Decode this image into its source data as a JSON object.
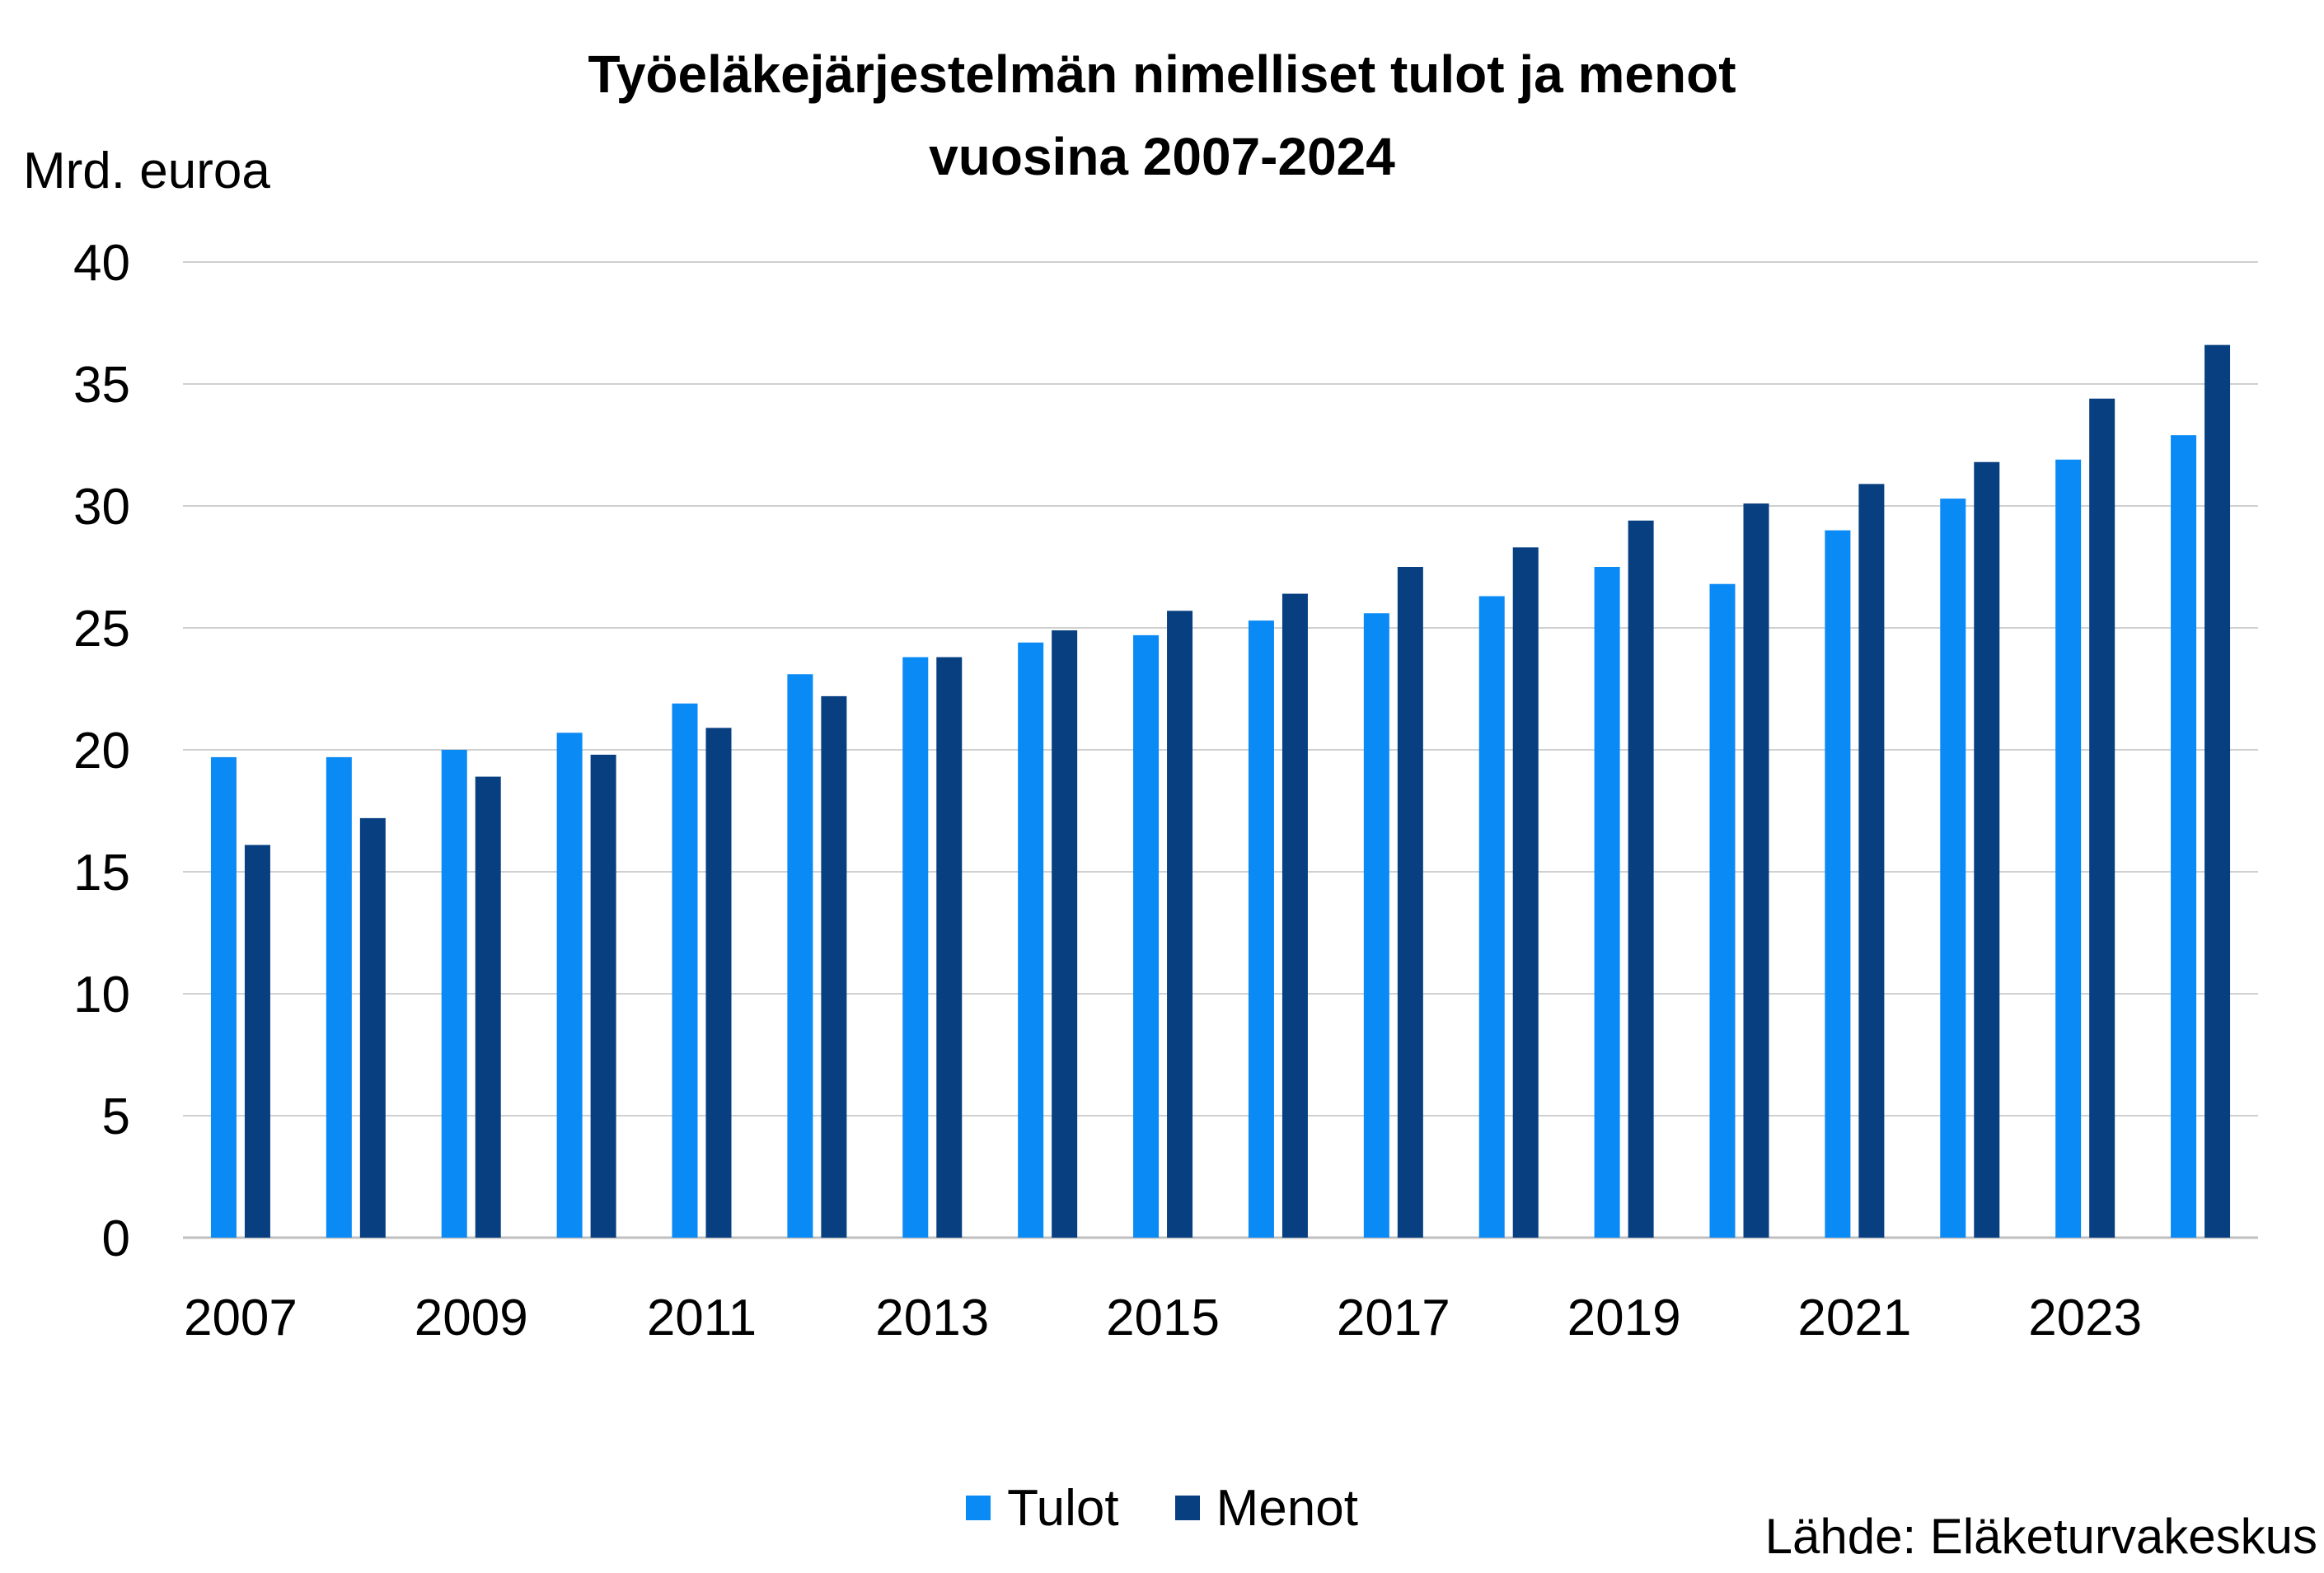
{
  "chart_data": {
    "type": "bar",
    "title_line1": "Työeläkejärjestelmän nimelliset tulot ja menot",
    "title_line2": "vuosina 2007-2024",
    "ylabel": "Mrd. euroa",
    "xlabel": "",
    "ylim": [
      0,
      40
    ],
    "yticks": [
      0,
      5,
      10,
      15,
      20,
      25,
      30,
      35,
      40
    ],
    "categories": [
      "2007",
      "2008",
      "2009",
      "2010",
      "2011",
      "2012",
      "2013",
      "2014",
      "2015",
      "2016",
      "2017",
      "2018",
      "2019",
      "2020",
      "2021",
      "2022",
      "2023",
      "2024"
    ],
    "xtick_labels": [
      "2007",
      "",
      "2009",
      "",
      "2011",
      "",
      "2013",
      "",
      "2015",
      "",
      "2017",
      "",
      "2019",
      "",
      "2021",
      "",
      "2023",
      ""
    ],
    "series": [
      {
        "name": "Tulot",
        "color": "#0a8af5",
        "values": [
          19.7,
          19.7,
          20.0,
          20.7,
          21.9,
          23.1,
          23.8,
          24.4,
          24.7,
          25.3,
          25.6,
          26.3,
          27.5,
          26.8,
          29.0,
          30.3,
          31.9,
          32.9
        ]
      },
      {
        "name": "Menot",
        "color": "#073f80",
        "values": [
          16.1,
          17.2,
          18.9,
          19.8,
          20.9,
          22.2,
          23.8,
          24.9,
          25.7,
          26.4,
          27.5,
          28.3,
          29.4,
          30.1,
          30.9,
          31.8,
          34.4,
          36.6
        ]
      }
    ],
    "grid": true,
    "legend": "bottom",
    "source": "Lähde: Eläketurvakeskus"
  }
}
